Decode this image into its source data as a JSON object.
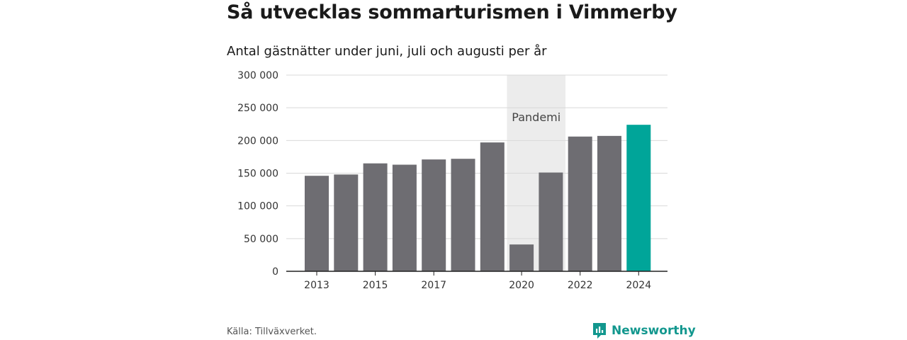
{
  "header": {
    "title": "Så utvecklas sommarturismen i Vimmerby",
    "subtitle": "Antal gästnätter under juni, juli och augusti per år"
  },
  "footer": {
    "source": "Källa: Tillväxverket.",
    "brand": "Newsworthy"
  },
  "colors": {
    "bar_default": "#6e6d72",
    "bar_highlight": "#00a599",
    "band": "#ececec",
    "grid": "#d9d9d9",
    "brand": "#12978e"
  },
  "chart_data": {
    "type": "bar",
    "title": "Så utvecklas sommarturismen i Vimmerby",
    "subtitle": "Antal gästnätter under juni, juli och augusti per år",
    "categories": [
      "2013",
      "2014",
      "2015",
      "2016",
      "2017",
      "2018",
      "2019",
      "2020",
      "2021",
      "2022",
      "2023",
      "2024"
    ],
    "values": [
      146000,
      148000,
      165000,
      163000,
      171000,
      172000,
      197000,
      41000,
      151000,
      206000,
      207000,
      224000
    ],
    "highlight": "2024",
    "x_tick_labels": [
      "2013",
      "2015",
      "2017",
      "2020",
      "2022",
      "2024"
    ],
    "y_ticks": [
      0,
      50000,
      100000,
      150000,
      200000,
      250000,
      300000
    ],
    "y_tick_labels": [
      "0",
      "50 000",
      "100 000",
      "150 000",
      "200 000",
      "250 000",
      "300 000"
    ],
    "ylim": [
      0,
      300000
    ],
    "grid": true,
    "xlabel": "",
    "ylabel": "",
    "annotations": [
      {
        "label": "Pandemi",
        "from": "2020",
        "to": "2021"
      }
    ]
  }
}
